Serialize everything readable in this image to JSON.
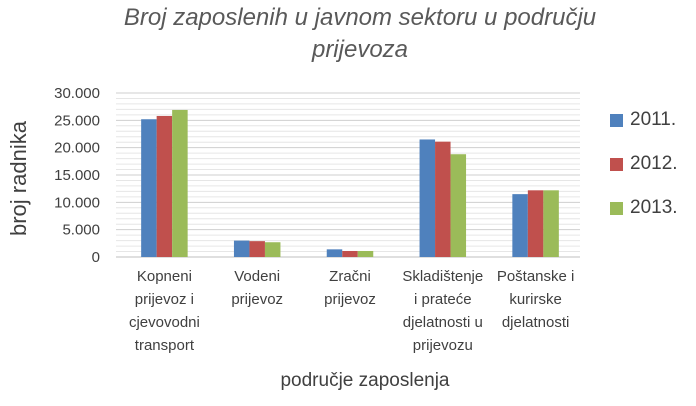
{
  "chart_data": {
    "type": "bar",
    "title": "Broj zaposlenih u javnom sektoru u području prijevoza",
    "title_lines": [
      "Broj zaposlenih u javnom sektoru u području",
      "prijevoza"
    ],
    "xlabel": "područje zaposlenja",
    "ylabel": "broj radnika",
    "ylim": [
      0,
      30000
    ],
    "ytick_values": [
      0,
      5000,
      10000,
      15000,
      20000,
      25000,
      30000
    ],
    "yticks": [
      "0",
      "5.000",
      "10.000",
      "15.000",
      "20.000",
      "25.000",
      "30.000"
    ],
    "grid": true,
    "legend_position": "right",
    "categories": [
      "Kopneni prijevoz i cjevovodni transport",
      "Vodeni prijevoz",
      "Zračni prijevoz",
      "Skladištenje i prateće djelatnosti u prijevozu",
      "Poštanske i kurirske djelatnosti"
    ],
    "category_lines": [
      [
        "Kopneni",
        "prijevoz i",
        "cjevovodni",
        "transport"
      ],
      [
        "Vodeni",
        "prijevoz"
      ],
      [
        "Zračni",
        "prijevoz"
      ],
      [
        "Skladištenje",
        "i prateće",
        "djelatnosti u",
        "prijevozu"
      ],
      [
        "Poštanske i",
        "kurirske",
        "djelatnosti"
      ]
    ],
    "series": [
      {
        "name": "2011.",
        "color": "#4F81BD",
        "values": [
          25200,
          3000,
          1400,
          21500,
          11500
        ]
      },
      {
        "name": "2012.",
        "color": "#C0504D",
        "values": [
          25800,
          2900,
          1100,
          21100,
          12200
        ]
      },
      {
        "name": "2013.",
        "color": "#9BBB59",
        "values": [
          26900,
          2700,
          1100,
          18800,
          12200
        ]
      }
    ]
  }
}
